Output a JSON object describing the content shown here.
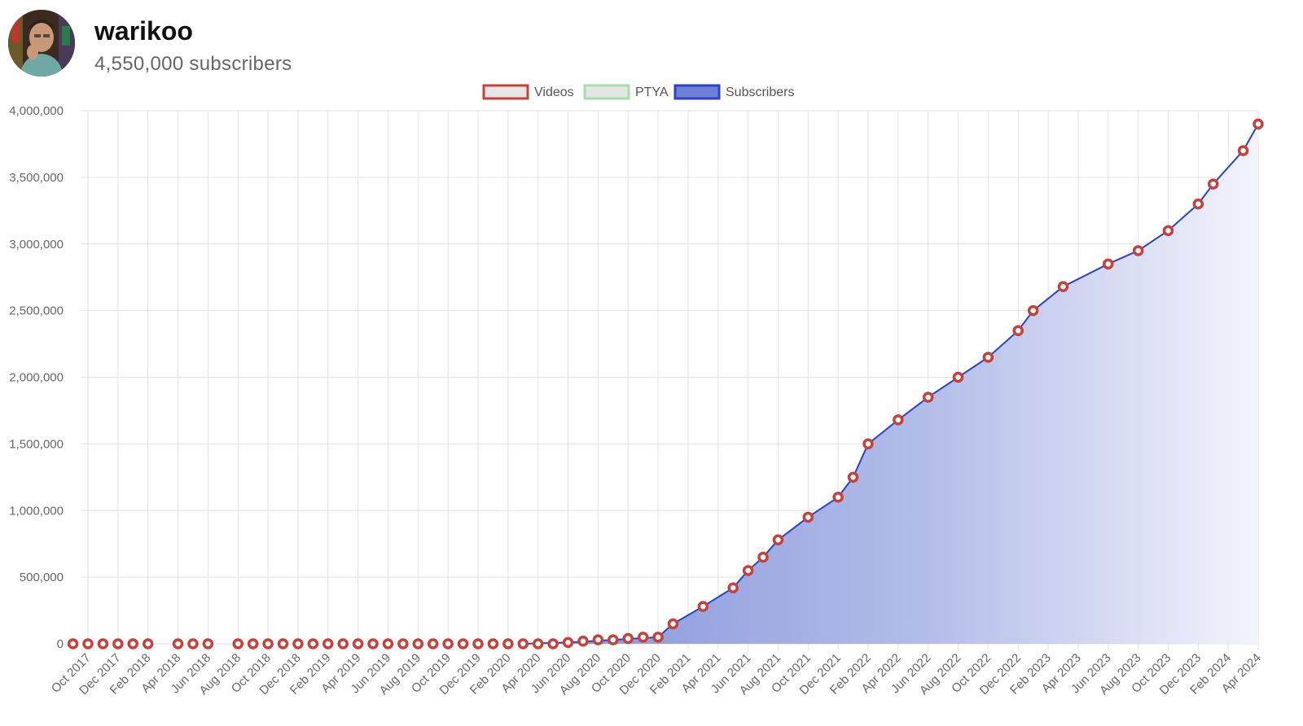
{
  "channel": {
    "name": "warikoo",
    "subscribers_text": "4,550,000 subscribers"
  },
  "colors": {
    "videos": "#c8403a",
    "ptya": "#a8dca8",
    "subscribers": "#2a44c9",
    "grid": "#e2e2e2"
  },
  "chart_data": {
    "type": "area",
    "title": "",
    "xlabel": "",
    "ylabel": "",
    "ylim": [
      0,
      4000000
    ],
    "y_ticks": [
      "4,000,000",
      "3,500,000",
      "3,000,000",
      "2,500,000",
      "2,000,000",
      "1,500,000",
      "1,000,000",
      "500,000",
      "0"
    ],
    "y_tick_values": [
      4000000,
      3500000,
      3000000,
      2500000,
      2000000,
      1500000,
      1000000,
      500000,
      0
    ],
    "x_ticks": [
      "Oct 2017",
      "Dec 2017",
      "Feb 2018",
      "Apr 2018",
      "Jun 2018",
      "Aug 2018",
      "Oct 2018",
      "Dec 2018",
      "Feb 2019",
      "Apr 2019",
      "Jun 2019",
      "Aug 2019",
      "Oct 2019",
      "Dec 2019",
      "Feb 2020",
      "Apr 2020",
      "Jun 2020",
      "Aug 2020",
      "Oct 2020",
      "Dec 2020",
      "Feb 2021",
      "Apr 2021",
      "Jun 2021",
      "Aug 2021",
      "Oct 2021",
      "Dec 2021",
      "Feb 2022",
      "Apr 2022",
      "Jun 2022",
      "Aug 2022",
      "Oct 2022",
      "Dec 2022",
      "Feb 2023",
      "Apr 2023",
      "Jun 2023",
      "Aug 2023",
      "Oct 2023",
      "Dec 2023",
      "Feb 2024",
      "Apr 2024"
    ],
    "legend": [
      {
        "name": "Videos",
        "color": "#c8403a"
      },
      {
        "name": "PTYA",
        "color": "#a8dca8"
      },
      {
        "name": "Subscribers",
        "color": "#2a44c9"
      }
    ],
    "legend_position": "top-center",
    "grid": true,
    "series": [
      {
        "name": "Subscribers",
        "type": "area",
        "x": [
          "2020-03",
          "2020-06",
          "2020-09",
          "2020-12",
          "2021-01",
          "2021-03",
          "2021-05",
          "2021-06",
          "2021-07",
          "2021-08",
          "2021-10",
          "2021-12",
          "2022-01",
          "2022-02",
          "2022-04",
          "2022-06",
          "2022-08",
          "2022-10",
          "2022-12",
          "2023-01",
          "2023-03",
          "2023-06",
          "2023-08",
          "2023-10",
          "2023-12",
          "2024-01",
          "2024-03",
          "2024-04"
        ],
        "values": [
          0,
          10000,
          30000,
          50000,
          150000,
          280000,
          420000,
          550000,
          650000,
          780000,
          950000,
          1100000,
          1250000,
          1500000,
          1680000,
          1850000,
          2000000,
          2150000,
          2350000,
          2500000,
          2680000,
          2850000,
          2950000,
          3100000,
          3300000,
          3450000,
          3700000,
          3900000
        ]
      },
      {
        "name": "Videos",
        "type": "points",
        "x": [
          "2017-09",
          "2017-10",
          "2017-11",
          "2017-12",
          "2018-01",
          "2018-02",
          "2018-04",
          "2018-05",
          "2018-06",
          "2018-08",
          "2018-09",
          "2018-10",
          "2018-11",
          "2018-12",
          "2019-01",
          "2019-02",
          "2019-03",
          "2019-04",
          "2019-05",
          "2019-06",
          "2019-07",
          "2019-08",
          "2019-09",
          "2019-10",
          "2019-11",
          "2019-12",
          "2020-01",
          "2020-02",
          "2020-03",
          "2020-04",
          "2020-05",
          "2020-06",
          "2020-07",
          "2020-08",
          "2020-09",
          "2020-10",
          "2020-11",
          "2020-12",
          "2021-01",
          "2021-03",
          "2021-05",
          "2021-06",
          "2021-07",
          "2021-08",
          "2021-10",
          "2021-12",
          "2022-01",
          "2022-02",
          "2022-04",
          "2022-06",
          "2022-08",
          "2022-10",
          "2022-12",
          "2023-01",
          "2023-03",
          "2023-06",
          "2023-08",
          "2023-10",
          "2023-12",
          "2024-01",
          "2024-03",
          "2024-04"
        ],
        "values": [
          0,
          0,
          0,
          0,
          0,
          0,
          0,
          0,
          0,
          0,
          0,
          0,
          0,
          0,
          0,
          0,
          0,
          0,
          0,
          0,
          0,
          0,
          0,
          0,
          0,
          0,
          0,
          0,
          0,
          0,
          0,
          10000,
          20000,
          30000,
          30000,
          40000,
          50000,
          50000,
          150000,
          280000,
          420000,
          550000,
          650000,
          780000,
          950000,
          1100000,
          1250000,
          1500000,
          1680000,
          1850000,
          2000000,
          2150000,
          2350000,
          2500000,
          2680000,
          2850000,
          2950000,
          3100000,
          3300000,
          3450000,
          3700000,
          3900000
        ]
      },
      {
        "name": "PTYA",
        "type": "line",
        "x": [],
        "values": []
      }
    ]
  }
}
